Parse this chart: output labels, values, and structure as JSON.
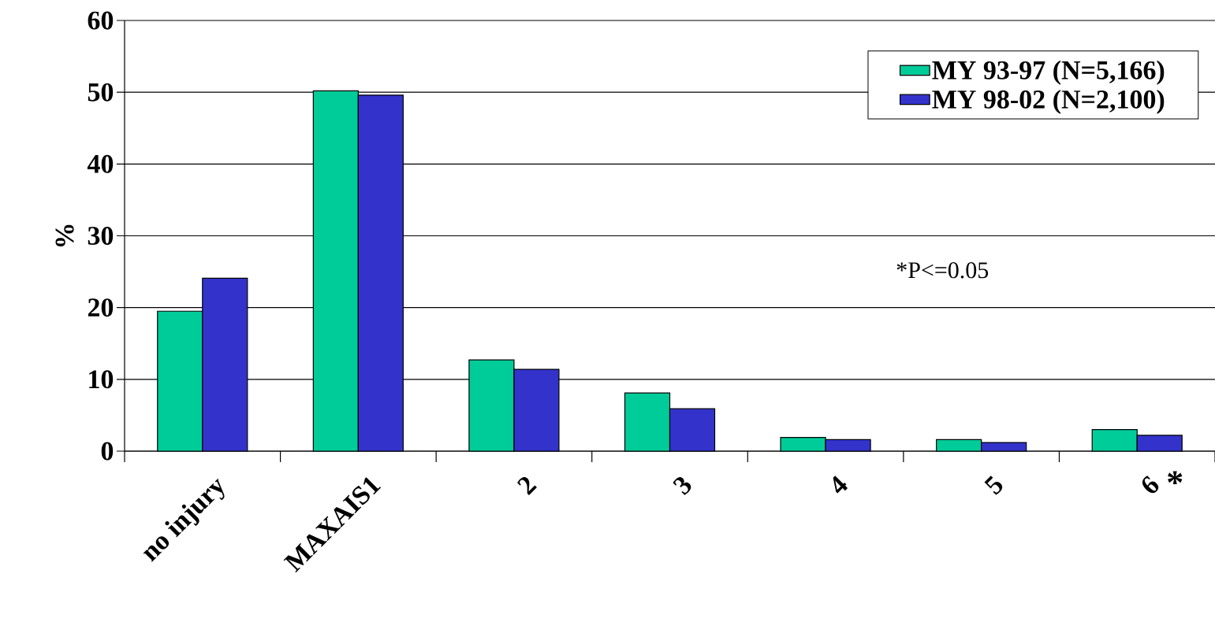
{
  "chart_data": {
    "type": "bar",
    "ylabel": "%",
    "categories": [
      "no injury",
      "MAXAIS1",
      "2",
      "3",
      "4",
      "5",
      "6"
    ],
    "series": [
      {
        "name": "MY 93-97 (N=5,166)",
        "color": "#00cc99",
        "values": [
          19.5,
          50.2,
          12.7,
          8.1,
          1.9,
          1.6,
          3.0
        ]
      },
      {
        "name": "MY 98-02 (N=2,100)",
        "color": "#3333cc",
        "values": [
          24.1,
          49.6,
          11.4,
          5.9,
          1.6,
          1.2,
          2.2
        ]
      }
    ],
    "ylim": [
      0,
      60
    ],
    "yticks": [
      0,
      10,
      20,
      30,
      40,
      50,
      60
    ],
    "grid": "y",
    "legend": "top right",
    "annotations": [
      "*P<=0.05",
      "*"
    ]
  }
}
